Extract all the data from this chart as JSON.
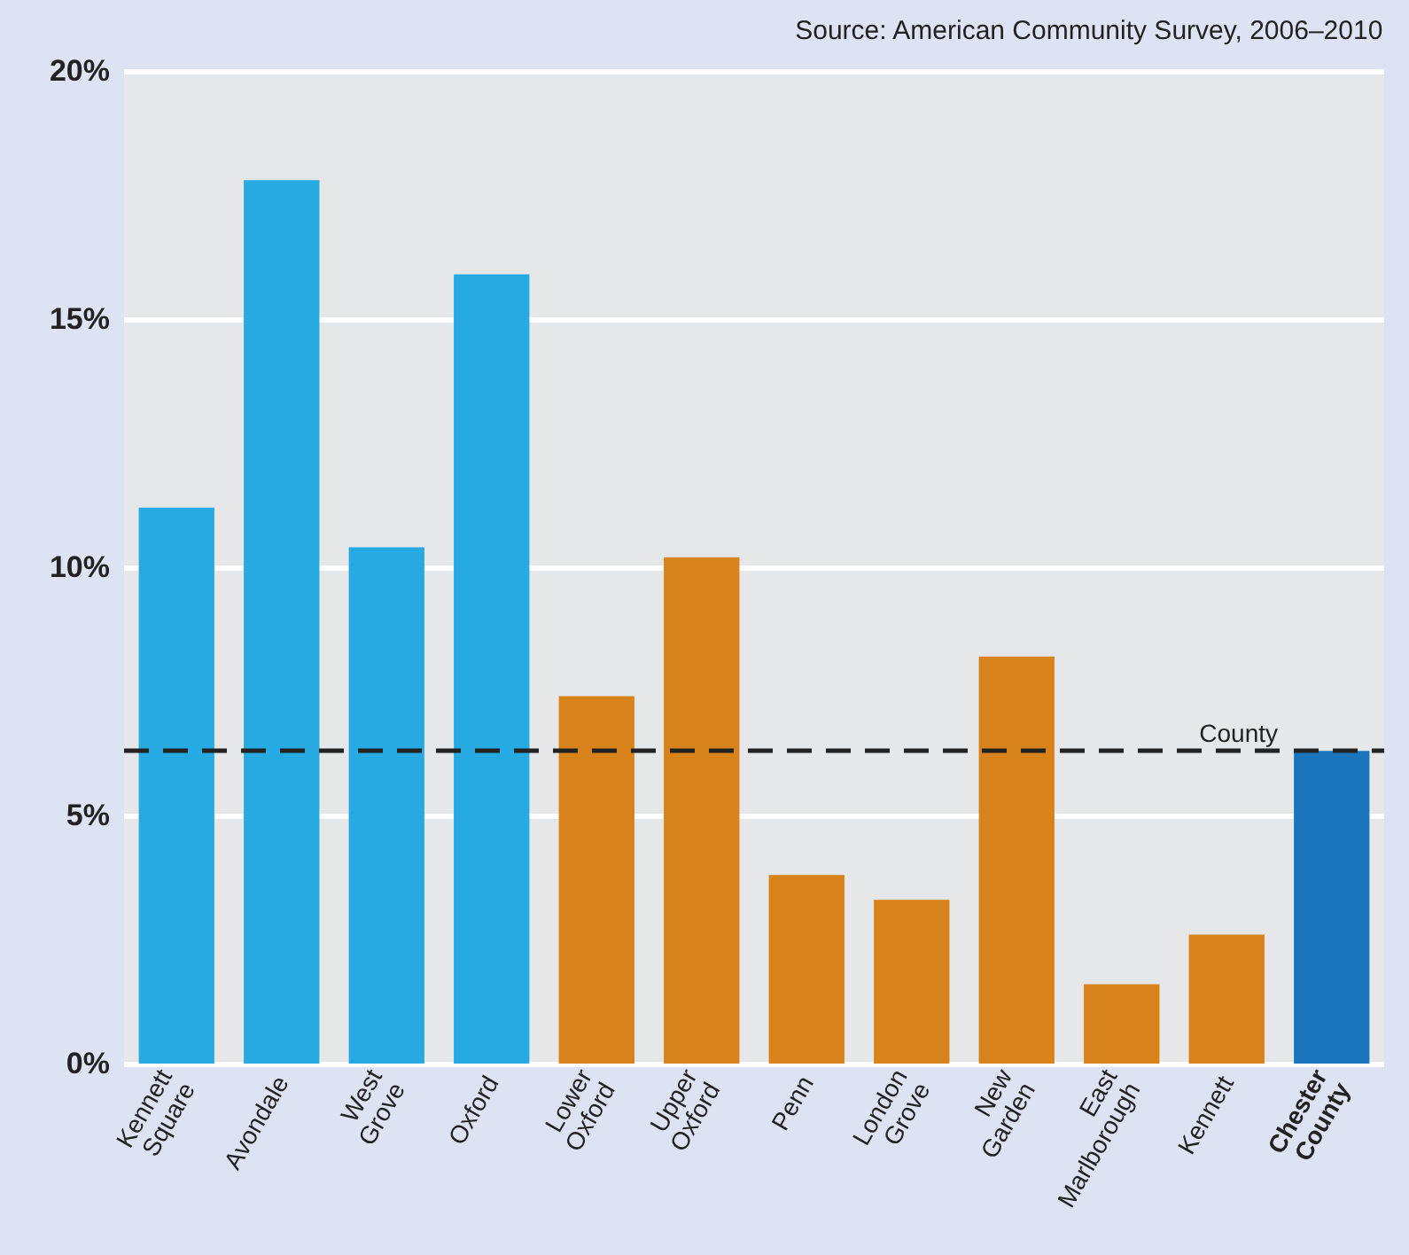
{
  "chart_data": {
    "type": "bar",
    "annotations": [
      "Source: American Community Survey, 2006–2010"
    ],
    "categories": [
      "Kennett\nSquare",
      "Avondale",
      "West\nGrove",
      "Oxford",
      "Lower\nOxford",
      "Upper\nOxford",
      "Penn",
      "London\nGrove",
      "New\nGarden",
      "East\nMarlborough",
      "Kennett",
      "Chester\nCounty"
    ],
    "values": [
      11.2,
      17.8,
      10.4,
      15.9,
      7.4,
      10.2,
      3.8,
      3.3,
      8.2,
      1.6,
      2.6,
      6.3
    ],
    "colors": [
      "#27aae1",
      "#27aae1",
      "#27aae1",
      "#27aae1",
      "#d7821a",
      "#d7821a",
      "#d7821a",
      "#d7821a",
      "#d7821a",
      "#d7821a",
      "#d7821a",
      "#1b75bc"
    ],
    "ylim": [
      0,
      20
    ],
    "yticks": [
      {
        "value": 0,
        "label": "0%"
      },
      {
        "value": 5,
        "label": "5%"
      },
      {
        "value": 10,
        "label": "10%"
      },
      {
        "value": 15,
        "label": "15%"
      },
      {
        "value": 20,
        "label": "20%"
      }
    ],
    "grid": "y",
    "ref_lines": [
      {
        "axis": "y",
        "value": 6.3,
        "label": "County",
        "color": "#222222",
        "line_style": "dashed"
      }
    ]
  }
}
